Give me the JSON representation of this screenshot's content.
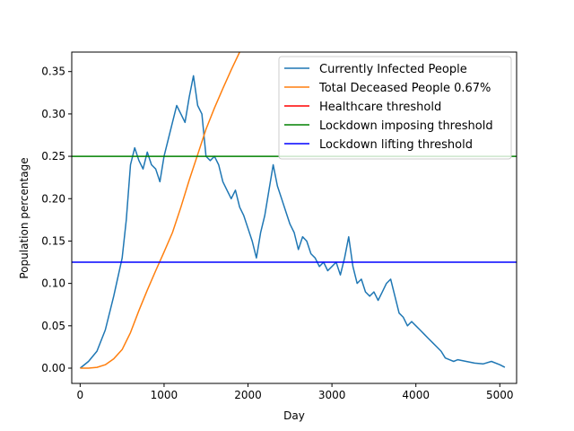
{
  "chart_data": {
    "type": "line",
    "xlabel": "Day",
    "ylabel": "Population percentage",
    "xlim": [
      -100,
      5200
    ],
    "ylim": [
      -0.018,
      0.373
    ],
    "xticks": [
      0,
      1000,
      2000,
      3000,
      4000,
      5000
    ],
    "yticks": [
      0.0,
      0.05,
      0.1,
      0.15,
      0.2,
      0.25,
      0.3,
      0.35
    ],
    "ytick_labels": [
      "0.00",
      "0.05",
      "0.10",
      "0.15",
      "0.20",
      "0.25",
      "0.30",
      "0.35"
    ],
    "grid": false,
    "legend_position": "top-right",
    "series": [
      {
        "name": "Currently Infected People",
        "color": "#1f77b4",
        "x": [
          0,
          100,
          200,
          300,
          400,
          500,
          550,
          600,
          650,
          700,
          750,
          800,
          850,
          900,
          950,
          1000,
          1050,
          1100,
          1150,
          1200,
          1250,
          1300,
          1350,
          1400,
          1450,
          1500,
          1550,
          1600,
          1650,
          1700,
          1750,
          1800,
          1850,
          1900,
          1950,
          2000,
          2050,
          2100,
          2150,
          2200,
          2250,
          2300,
          2350,
          2400,
          2450,
          2500,
          2550,
          2600,
          2650,
          2700,
          2750,
          2800,
          2850,
          2900,
          2950,
          3000,
          3050,
          3100,
          3150,
          3200,
          3250,
          3300,
          3350,
          3400,
          3450,
          3500,
          3550,
          3600,
          3650,
          3700,
          3750,
          3800,
          3850,
          3900,
          3950,
          4000,
          4050,
          4100,
          4150,
          4200,
          4250,
          4300,
          4350,
          4400,
          4450,
          4500,
          4600,
          4700,
          4800,
          4900,
          5000,
          5060
        ],
        "values": [
          0.0,
          0.008,
          0.02,
          0.045,
          0.085,
          0.13,
          0.175,
          0.24,
          0.26,
          0.245,
          0.235,
          0.255,
          0.24,
          0.235,
          0.22,
          0.25,
          0.27,
          0.29,
          0.31,
          0.3,
          0.29,
          0.32,
          0.345,
          0.31,
          0.3,
          0.25,
          0.245,
          0.25,
          0.24,
          0.22,
          0.21,
          0.2,
          0.21,
          0.19,
          0.18,
          0.165,
          0.15,
          0.13,
          0.16,
          0.18,
          0.21,
          0.24,
          0.215,
          0.2,
          0.185,
          0.17,
          0.16,
          0.14,
          0.155,
          0.15,
          0.135,
          0.13,
          0.12,
          0.125,
          0.115,
          0.12,
          0.125,
          0.11,
          0.13,
          0.155,
          0.12,
          0.1,
          0.105,
          0.09,
          0.085,
          0.09,
          0.08,
          0.09,
          0.1,
          0.105,
          0.085,
          0.065,
          0.06,
          0.05,
          0.055,
          0.05,
          0.045,
          0.04,
          0.035,
          0.03,
          0.025,
          0.02,
          0.012,
          0.01,
          0.008,
          0.01,
          0.008,
          0.006,
          0.005,
          0.008,
          0.004,
          0.001
        ]
      },
      {
        "name": "Total Deceased People 0.67%",
        "color": "#ff7f0e",
        "x": [
          0,
          100,
          200,
          300,
          400,
          500,
          600,
          700,
          800,
          900,
          1000,
          1100,
          1200,
          1300,
          1400,
          1500,
          1600,
          1700,
          1800,
          1900
        ],
        "values": [
          0.0,
          0.0,
          0.001,
          0.004,
          0.011,
          0.022,
          0.042,
          0.068,
          0.092,
          0.115,
          0.137,
          0.16,
          0.19,
          0.222,
          0.252,
          0.282,
          0.307,
          0.33,
          0.352,
          0.373
        ]
      },
      {
        "name": "Healthcare threshold",
        "color": "#ff0000",
        "x": [],
        "values": []
      },
      {
        "name": "Lockdown imposing threshold",
        "color": "#008000",
        "hline": 0.25
      },
      {
        "name": "Lockdown lifting threshold",
        "color": "#0000ff",
        "hline": 0.125
      }
    ]
  }
}
